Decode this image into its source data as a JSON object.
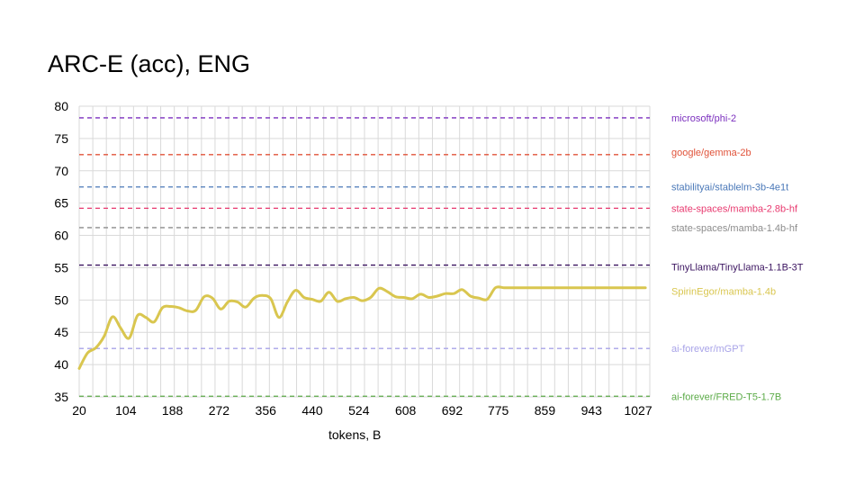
{
  "chart_data": {
    "type": "line",
    "title": "ARC-E (acc), ENG",
    "xlabel": "tokens, B",
    "ylabel": "",
    "ylim": [
      35,
      80
    ],
    "xlim": [
      20,
      1048
    ],
    "grid": true,
    "legend_position": "right",
    "y_ticks": [
      "80",
      "75",
      "70",
      "65",
      "60",
      "55",
      "50",
      "45",
      "40",
      "35"
    ],
    "x_ticks": [
      "20",
      "104",
      "188",
      "272",
      "356",
      "440",
      "524",
      "608",
      "692",
      "775",
      "859",
      "943",
      "1027"
    ],
    "reference_lines": [
      {
        "name": "microsoft/phi-2",
        "value": 78.2,
        "color": "#7b2fbe"
      },
      {
        "name": "google/gemma-2b",
        "value": 72.5,
        "color": "#e0533a"
      },
      {
        "name": "stabilityai/stablelm-3b-4e1t",
        "value": 67.5,
        "color": "#4a78b8"
      },
      {
        "name": "state-spaces/mamba-2.8b-hf",
        "value": 64.2,
        "color": "#e8396f"
      },
      {
        "name": "state-spaces/mamba-1.4b-hf",
        "value": 61.2,
        "color": "#8c8c8c"
      },
      {
        "name": "TinyLlama/TinyLlama-1.1B-3T",
        "value": 55.4,
        "color": "#3b1460"
      },
      {
        "name": "ai-forever/mGPT",
        "value": 42.5,
        "color": "#a8a3e8"
      },
      {
        "name": "ai-forever/FRED-T5-1.7B",
        "value": 35.1,
        "color": "#5cab48"
      }
    ],
    "series": [
      {
        "name": "SpirinEgor/mamba-1.4b",
        "color": "#d9c64f",
        "x": [
          20,
          35,
          50,
          65,
          80,
          95,
          110,
          125,
          140,
          155,
          170,
          185,
          200,
          215,
          230,
          245,
          260,
          275,
          290,
          305,
          320,
          335,
          350,
          365,
          380,
          395,
          410,
          425,
          440,
          455,
          470,
          485,
          500,
          515,
          530,
          545,
          560,
          575,
          590,
          605,
          620,
          635,
          650,
          665,
          680,
          695,
          710,
          725,
          740,
          755,
          770,
          785,
          800,
          815,
          830,
          845,
          860,
          875,
          890,
          905,
          920,
          935,
          950,
          965,
          980,
          995,
          1010,
          1025,
          1040
        ],
        "values": [
          39.4,
          41.8,
          42.6,
          44.4,
          47.4,
          45.6,
          44.1,
          47.6,
          47.3,
          46.6,
          48.8,
          49.0,
          48.8,
          48.3,
          48.4,
          50.5,
          50.3,
          48.6,
          49.8,
          49.7,
          48.9,
          50.3,
          50.7,
          50.2,
          47.3,
          49.7,
          51.5,
          50.4,
          50.1,
          49.8,
          51.2,
          49.8,
          50.2,
          50.4,
          49.9,
          50.4,
          51.8,
          51.3,
          50.5,
          50.4,
          50.2,
          50.9,
          50.4,
          50.6,
          51.0,
          51.0,
          51.6,
          50.6,
          50.3,
          50.1,
          51.9,
          51.9,
          51.9,
          51.9,
          51.9,
          51.9,
          51.9,
          51.9,
          51.9,
          51.9,
          51.9,
          51.9,
          51.9,
          51.9,
          51.9,
          51.9,
          51.9,
          51.9,
          51.9
        ]
      }
    ],
    "series_label_value": 51.4
  }
}
